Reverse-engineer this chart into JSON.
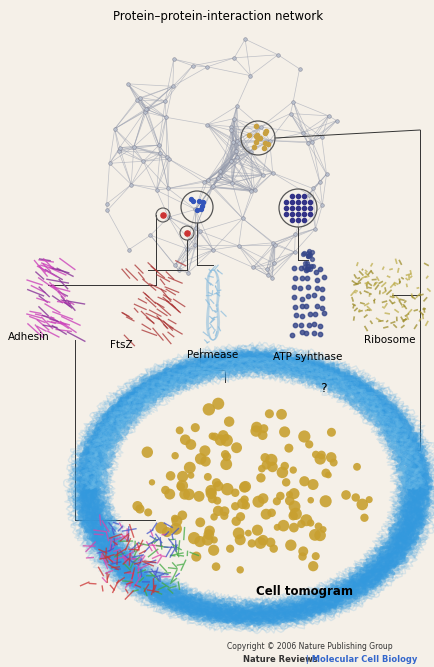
{
  "title": "Protein–protein-interaction network",
  "cell_tomogram_label": "Cell tomogram",
  "copyright_line1": "Copyright © 2006 Nature Publishing Group",
  "copyright_line2_black": "Nature Reviews",
  "copyright_line2_blue": " | Molecular Cell Biology",
  "labels": {
    "adhesin": "Adhesin",
    "ftsz": "FtsZ",
    "permease": "Permease",
    "atp_synthase": "ATP synthase",
    "ribosome": "Ribosome",
    "question": "?"
  },
  "bg_color": "#f5f0e8",
  "network_node_color": "#b8bfcc",
  "network_edge_color": "#9aa0b0",
  "network_center_color": "#c8a040",
  "network_cluster1_color": "#cc3333",
  "network_cluster2_color": "#3355bb",
  "network_cluster3_color": "#333388",
  "cell_membrane_color": "#3399dd",
  "cell_ribosome_color": "#c8a030",
  "adhesin_color1": "#cc44bb",
  "adhesin_color2": "#883399",
  "ftsz_color": "#aa3333",
  "permease_color": "#88bbdd",
  "atp_synthase_color": "#334488",
  "ribosome_color1": "#998822",
  "ribosome_color2": "#bbaa44",
  "bottom_complex_pink": "#dd44aa",
  "bottom_complex_green": "#44aa44",
  "bottom_complex_blue": "#4455cc",
  "bottom_complex_red": "#cc3333"
}
